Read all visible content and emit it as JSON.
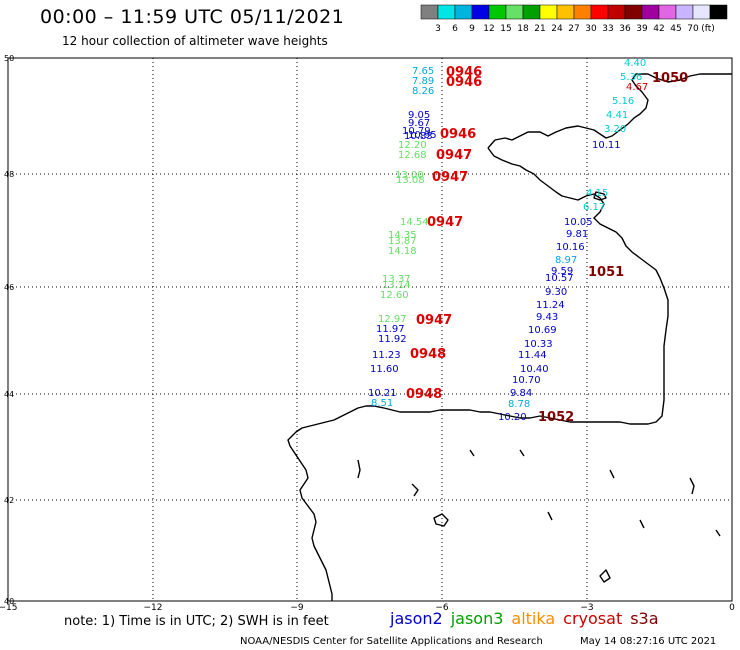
{
  "header": {
    "title": "00:00 – 11:59 UTC 05/11/2021",
    "subtitle": "12 hour collection of altimeter wave heights"
  },
  "colorbar": {
    "colors": [
      "#808080",
      "#00e5e5",
      "#00b4e0",
      "#0000e6",
      "#00c800",
      "#66e066",
      "#00a000",
      "#ffff00",
      "#ffc000",
      "#ff8000",
      "#ff0000",
      "#c00000",
      "#800000",
      "#a000a0",
      "#e066e6",
      "#c8b4ff",
      "#e6e6ff",
      "#000000"
    ],
    "labels": [
      "3",
      "6",
      "9",
      "12",
      "15",
      "18",
      "21",
      "24",
      "27",
      "30",
      "33",
      "36",
      "39",
      "42",
      "45",
      "70",
      "(ft)"
    ]
  },
  "map": {
    "y_ticks": [
      "50",
      "48",
      "46",
      "44",
      "42",
      "40"
    ],
    "x_ticks": [
      "−15",
      "−12",
      "−9",
      "−6",
      "−3",
      "0"
    ]
  },
  "legend": {
    "note": "note: 1) Time is in UTC; 2) SWH is in feet",
    "satellites": [
      {
        "name": "jason2",
        "color": "#0000cc"
      },
      {
        "name": "jason3",
        "color": "#00a000"
      },
      {
        "name": "altika",
        "color": "#ff8c00"
      },
      {
        "name": "cryosat",
        "color": "#cc0000"
      },
      {
        "name": "s3a",
        "color": "#800000"
      }
    ]
  },
  "footer": {
    "left": "NOAA/NESDIS Center for Satellite Applications and Research",
    "right": "May 14 08:27:16 UTC 2021"
  },
  "observations": [
    {
      "v": "7.65",
      "c": "#00aadd"
    },
    {
      "v": "7.89",
      "c": "#00aadd"
    },
    {
      "v": "8.26",
      "c": "#00aadd"
    },
    {
      "v": "9.05",
      "c": "#0000cc"
    },
    {
      "v": "9.67",
      "c": "#0000cc"
    },
    {
      "v": "10.79",
      "c": "#0000cc"
    },
    {
      "v": "10.83",
      "c": "#0000cc"
    },
    {
      "v": "10.95",
      "c": "#0000cc"
    },
    {
      "v": "12.20",
      "c": "#66dd66"
    },
    {
      "v": "12.68",
      "c": "#66dd66"
    },
    {
      "v": "13.00",
      "c": "#66dd66"
    },
    {
      "v": "13.08",
      "c": "#66dd66"
    },
    {
      "v": "14.54",
      "c": "#66dd66"
    },
    {
      "v": "14.35",
      "c": "#66dd66"
    },
    {
      "v": "13.87",
      "c": "#66dd66"
    },
    {
      "v": "14.18",
      "c": "#66dd66"
    },
    {
      "v": "13.37",
      "c": "#66dd66"
    },
    {
      "v": "13.14",
      "c": "#66dd66"
    },
    {
      "v": "12.60",
      "c": "#66dd66"
    },
    {
      "v": "12.97",
      "c": "#66dd66"
    },
    {
      "v": "11.97",
      "c": "#0000cc"
    },
    {
      "v": "11.92",
      "c": "#0000cc"
    },
    {
      "v": "11.23",
      "c": "#0000cc"
    },
    {
      "v": "11.60",
      "c": "#0000cc"
    },
    {
      "v": "10.21",
      "c": "#0000cc"
    },
    {
      "v": "8.51",
      "c": "#00aadd"
    },
    {
      "v": "4.40",
      "c": "#00cccc"
    },
    {
      "v": "5.36",
      "c": "#00cccc"
    },
    {
      "v": "4.67",
      "c": "#cc0000"
    },
    {
      "v": "5.16",
      "c": "#00cccc"
    },
    {
      "v": "4.41",
      "c": "#00cccc"
    },
    {
      "v": "3.20",
      "c": "#00cccc"
    },
    {
      "v": "10.11",
      "c": "#0000cc"
    },
    {
      "v": "4.15",
      "c": "#00cccc"
    },
    {
      "v": "6.17",
      "c": "#00cccc"
    },
    {
      "v": "10.05",
      "c": "#0000cc"
    },
    {
      "v": "9.81",
      "c": "#0000cc"
    },
    {
      "v": "10.16",
      "c": "#0000cc"
    },
    {
      "v": "8.97",
      "c": "#00aadd"
    },
    {
      "v": "9.59",
      "c": "#0000cc"
    },
    {
      "v": "10.57",
      "c": "#0000cc"
    },
    {
      "v": "9.30",
      "c": "#0000cc"
    },
    {
      "v": "11.24",
      "c": "#0000cc"
    },
    {
      "v": "9.43",
      "c": "#0000cc"
    },
    {
      "v": "10.69",
      "c": "#0000cc"
    },
    {
      "v": "10.33",
      "c": "#0000cc"
    },
    {
      "v": "11.44",
      "c": "#0000cc"
    },
    {
      "v": "10.40",
      "c": "#0000cc"
    },
    {
      "v": "10.70",
      "c": "#0000cc"
    },
    {
      "v": "9.84",
      "c": "#0000cc"
    },
    {
      "v": "8.78",
      "c": "#00aadd"
    },
    {
      "v": "10.20",
      "c": "#0000cc"
    }
  ],
  "pass_times": [
    {
      "v": "0946",
      "c": "#dd0000"
    },
    {
      "v": "0946",
      "c": "#dd0000"
    },
    {
      "v": "0946",
      "c": "#dd0000"
    },
    {
      "v": "0947",
      "c": "#dd0000"
    },
    {
      "v": "0947",
      "c": "#dd0000"
    },
    {
      "v": "0947",
      "c": "#dd0000"
    },
    {
      "v": "0947",
      "c": "#dd0000"
    },
    {
      "v": "0948",
      "c": "#dd0000"
    },
    {
      "v": "0948",
      "c": "#dd0000"
    },
    {
      "v": "1050",
      "c": "#800000"
    },
    {
      "v": "1051",
      "c": "#800000"
    },
    {
      "v": "1052",
      "c": "#800000"
    }
  ]
}
